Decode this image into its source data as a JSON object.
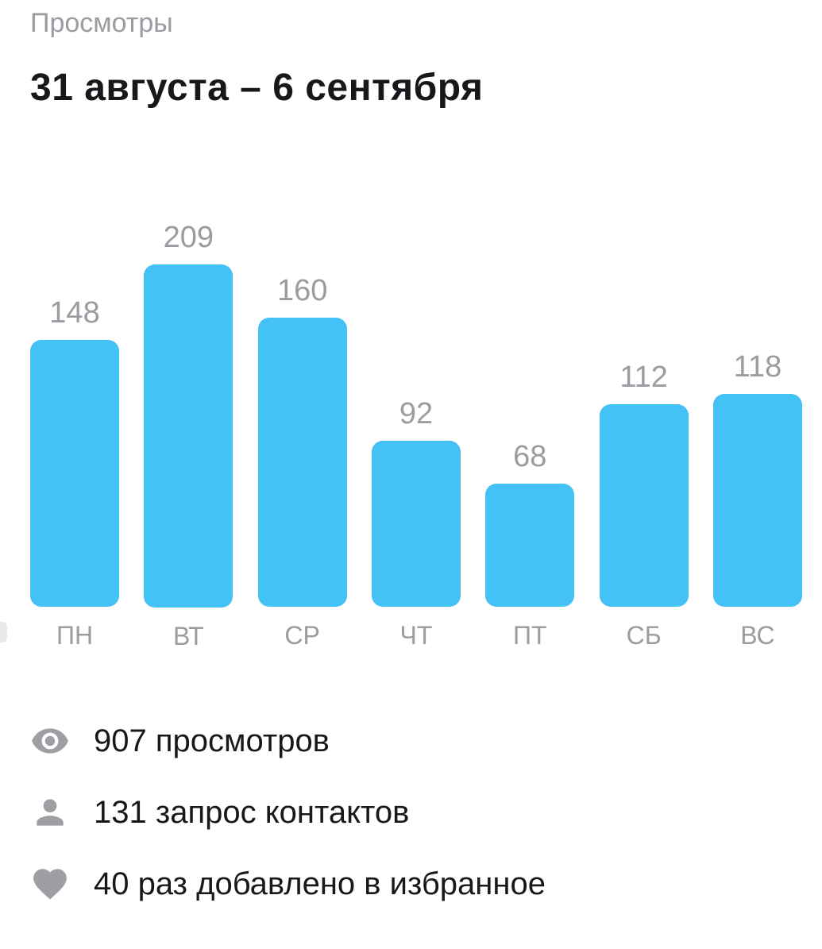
{
  "header": {
    "subtitle": "Просмотры",
    "title": "31 августа – 6 сентября"
  },
  "chart_data": {
    "type": "bar",
    "categories": [
      "ПН",
      "ВТ",
      "СР",
      "ЧТ",
      "ПТ",
      "СБ",
      "ВС"
    ],
    "values": [
      148,
      209,
      160,
      92,
      68,
      112,
      118
    ],
    "title": "31 августа – 6 сентября",
    "xlabel": "",
    "ylabel": "",
    "ylim": [
      0,
      209
    ],
    "grid": false,
    "legend": false,
    "bar_color": "#45c2f5",
    "label_color": "#9b9ba1"
  },
  "stats": [
    {
      "icon": "eye-icon",
      "label": "907 просмотров"
    },
    {
      "icon": "person-icon",
      "label": "131 запрос контактов"
    },
    {
      "icon": "heart-icon",
      "label": "40 раз добавлено в избранное"
    }
  ]
}
